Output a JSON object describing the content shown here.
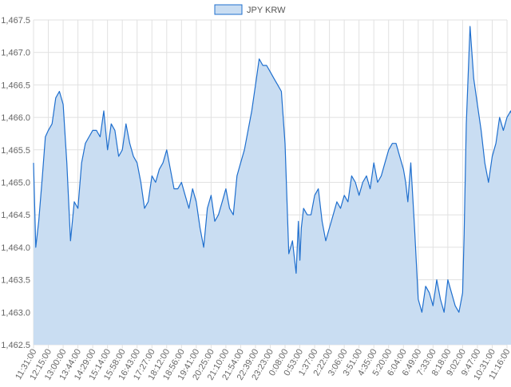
{
  "colors": {
    "line": "#1f6fce",
    "fill": "#c9ddf2",
    "grid": "#e1e1e1",
    "axis_text": "#666666",
    "legend_text": "#555555",
    "background": "#ffffff"
  },
  "chart_data": {
    "type": "area",
    "title": "",
    "xlabel": "",
    "ylabel": "",
    "legend": {
      "position": "top-center",
      "entries": [
        "JPY KRW"
      ]
    },
    "grid": true,
    "ylim": [
      1462.5,
      1467.5
    ],
    "y_ticks": [
      "1,467.5",
      "1,467.0",
      "1,466.5",
      "1,466.0",
      "1,465.5",
      "1,465.0",
      "1,464.5",
      "1,464.0",
      "1,463.5",
      "1,463.0",
      "1,462.5"
    ],
    "y_tick_values": [
      1467.5,
      1467.0,
      1466.5,
      1466.0,
      1465.5,
      1465.0,
      1464.5,
      1464.0,
      1463.5,
      1463.0,
      1462.5
    ],
    "x_tick_labels": [
      "11:31:00",
      "12:15:00",
      "13:00:00",
      "13:44:00",
      "14:29:00",
      "15:14:00",
      "15:58:00",
      "16:43:00",
      "17:27:00",
      "18:12:00",
      "18:56:00",
      "19:41:00",
      "20:25:00",
      "21:10:00",
      "21:54:00",
      "22:39:00",
      "23:23:00",
      "0:08:00",
      "0:53:00",
      "1:37:00",
      "2:22:00",
      "3:06:00",
      "3:51:00",
      "4:35:00",
      "5:20:00",
      "6:04:00",
      "6:49:00",
      "7:33:00",
      "8:18:00",
      "9:02:00",
      "9:47:00",
      "10:31:00",
      "11:16:00"
    ],
    "series": [
      {
        "name": "JPY KRW",
        "x_index": [
          0,
          0.15,
          0.35,
          0.6,
          0.8,
          1.0,
          1.25,
          1.5,
          1.75,
          2.0,
          2.25,
          2.5,
          2.75,
          3.0,
          3.25,
          3.5,
          3.75,
          4.0,
          4.25,
          4.5,
          4.75,
          5.0,
          5.25,
          5.5,
          5.75,
          6.0,
          6.25,
          6.5,
          6.75,
          7.0,
          7.25,
          7.5,
          7.75,
          8.0,
          8.25,
          8.5,
          8.75,
          9.0,
          9.25,
          9.5,
          9.75,
          10.0,
          10.25,
          10.5,
          10.75,
          11.0,
          11.25,
          11.5,
          11.75,
          12.0,
          12.25,
          12.5,
          12.75,
          13.0,
          13.25,
          13.5,
          13.75,
          14.0,
          14.25,
          14.5,
          14.75,
          15.0,
          15.25,
          15.5,
          15.75,
          16.0,
          16.25,
          16.5,
          16.75,
          17.0,
          17.25,
          17.5,
          17.75,
          17.9,
          18.0,
          18.1,
          18.25,
          18.5,
          18.75,
          19.0,
          19.25,
          19.5,
          19.75,
          20.0,
          20.25,
          20.5,
          20.75,
          21.0,
          21.25,
          21.5,
          21.75,
          22.0,
          22.25,
          22.5,
          22.75,
          23.0,
          23.25,
          23.5,
          23.75,
          24.0,
          24.25,
          24.5,
          24.75,
          25.0,
          25.15,
          25.3,
          25.5,
          25.75,
          26.0,
          26.25,
          26.5,
          26.75,
          27.0,
          27.25,
          27.5,
          27.75,
          28.0,
          28.25,
          28.5,
          28.75,
          29.0,
          29.1,
          29.25,
          29.5,
          29.75,
          30.0,
          30.25,
          30.5,
          30.75,
          31.0,
          31.25,
          31.5,
          31.75,
          32.0,
          32.25,
          32.5,
          32.75,
          33.0
        ],
        "values": [
          1465.3,
          1464.0,
          1464.4,
          1465.1,
          1465.7,
          1465.8,
          1465.9,
          1466.3,
          1466.4,
          1466.2,
          1465.3,
          1464.1,
          1464.7,
          1464.6,
          1465.3,
          1465.6,
          1465.7,
          1465.8,
          1465.8,
          1465.7,
          1466.1,
          1465.5,
          1465.9,
          1465.8,
          1465.4,
          1465.5,
          1465.9,
          1465.6,
          1465.4,
          1465.3,
          1465.0,
          1464.6,
          1464.7,
          1465.1,
          1465.0,
          1465.2,
          1465.3,
          1465.5,
          1465.2,
          1464.9,
          1464.9,
          1465.0,
          1464.8,
          1464.6,
          1464.9,
          1464.7,
          1464.3,
          1464.0,
          1464.6,
          1464.8,
          1464.4,
          1464.5,
          1464.7,
          1464.9,
          1464.6,
          1464.5,
          1465.1,
          1465.3,
          1465.5,
          1465.8,
          1466.1,
          1466.5,
          1466.9,
          1466.8,
          1466.8,
          1466.7,
          1466.6,
          1466.5,
          1466.4,
          1465.6,
          1463.9,
          1464.1,
          1463.6,
          1464.4,
          1463.8,
          1464.3,
          1464.6,
          1464.5,
          1464.5,
          1464.8,
          1464.9,
          1464.4,
          1464.1,
          1464.3,
          1464.5,
          1464.7,
          1464.6,
          1464.8,
          1464.7,
          1465.1,
          1465.0,
          1464.8,
          1465.0,
          1465.1,
          1464.9,
          1465.3,
          1465.0,
          1465.1,
          1465.3,
          1465.5,
          1465.6,
          1465.6,
          1465.4,
          1465.2,
          1465.0,
          1464.7,
          1465.3,
          1464.3,
          1463.2,
          1463.0,
          1463.4,
          1463.3,
          1463.1,
          1463.5,
          1463.2,
          1463.0,
          1463.5,
          1463.3,
          1463.1,
          1463.0,
          1463.3,
          1464.2,
          1465.9,
          1467.4,
          1466.6,
          1466.2,
          1465.8,
          1465.3,
          1465.0,
          1465.4,
          1465.6,
          1466.0,
          1465.8,
          1466.0,
          1466.1,
          1465.9,
          1466.2,
          1466.4
        ]
      }
    ]
  }
}
